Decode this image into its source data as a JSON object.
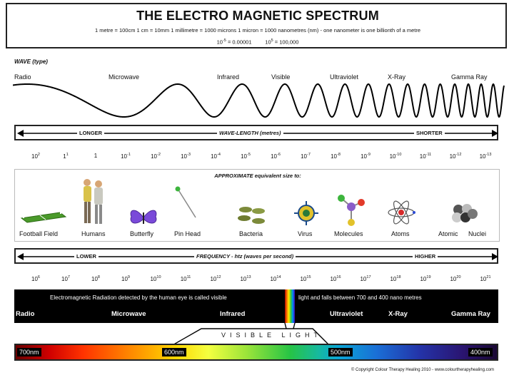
{
  "header": {
    "title": "THE ELECTRO MAGNETIC SPECTRUM",
    "units": "1 metre = 100cm   1 cm = 10mm   1 millimetre = 1000 microns   1 micron = 1000 nanometres (nm) - one nanometer is one billionth of a metre",
    "power_neg_base": "10",
    "power_neg_exp": "-5",
    "power_neg_val": "= 0.00001",
    "power_pos_base": "10",
    "power_pos_exp": "5",
    "power_pos_val": "= 100,000"
  },
  "wave": {
    "heading": "WAVE (type)",
    "labels": [
      "Radio",
      "Microwave",
      "Infrared",
      "Visible",
      "Ultraviolet",
      "X-Ray",
      "Gamma Ray"
    ]
  },
  "wavelength": {
    "left": "LONGER",
    "center": "WAVE-LENGTH (metres)",
    "right": "SHORTER",
    "ticks": [
      {
        "b": "10",
        "e": "2"
      },
      {
        "b": "1",
        "e": "1"
      },
      {
        "b": "1",
        "e": ""
      },
      {
        "b": "10",
        "e": "-1"
      },
      {
        "b": "10",
        "e": "-2"
      },
      {
        "b": "10",
        "e": "-3"
      },
      {
        "b": "10",
        "e": "-4"
      },
      {
        "b": "10",
        "e": "-5"
      },
      {
        "b": "10",
        "e": "-6"
      },
      {
        "b": "10",
        "e": "-7"
      },
      {
        "b": "10",
        "e": "-8"
      },
      {
        "b": "10",
        "e": "-9"
      },
      {
        "b": "10",
        "e": "-10"
      },
      {
        "b": "10",
        "e": "-11"
      },
      {
        "b": "10",
        "e": "-12"
      },
      {
        "b": "10",
        "e": "-13"
      }
    ]
  },
  "sizes": {
    "heading": "APPROXIMATE equivalent size to:",
    "items": [
      "Football Field",
      "Humans",
      "Butterfly",
      "Pin Head",
      "Bacteria",
      "Virus",
      "Molecules",
      "Atoms",
      "Atomic",
      "Nuclei"
    ]
  },
  "frequency": {
    "left": "LOWER",
    "center": "FREQUENCY - htz (waves per second)",
    "right": "HIGHER",
    "ticks": [
      {
        "b": "10",
        "e": "6"
      },
      {
        "b": "10",
        "e": "7"
      },
      {
        "b": "10",
        "e": "8"
      },
      {
        "b": "10",
        "e": "9"
      },
      {
        "b": "10",
        "e": "10"
      },
      {
        "b": "10",
        "e": "11"
      },
      {
        "b": "10",
        "e": "12"
      },
      {
        "b": "10",
        "e": "13"
      },
      {
        "b": "10",
        "e": "14"
      },
      {
        "b": "10",
        "e": "15"
      },
      {
        "b": "10",
        "e": "16"
      },
      {
        "b": "10",
        "e": "17"
      },
      {
        "b": "10",
        "e": "18"
      },
      {
        "b": "10",
        "e": "19"
      },
      {
        "b": "10",
        "e": "20"
      },
      {
        "b": "10",
        "e": "21"
      }
    ]
  },
  "bar": {
    "note_left": "Electromagnetic Radiation detected by the human eye is called visible",
    "note_right": "light and falls between 700 and 400 nano metres",
    "regions": [
      "Radio",
      "Microwave",
      "Infrared",
      "Ultraviolet",
      "X-Ray",
      "Gamma Ray"
    ]
  },
  "visible": {
    "label": "VISIBLE LIGHT",
    "nm": [
      "700nm",
      "600nm",
      "500nm",
      "400nm"
    ]
  },
  "copyright": "© Copyright Colour Therapy Healing 2010 - www.colourtherapyhealing.com"
}
